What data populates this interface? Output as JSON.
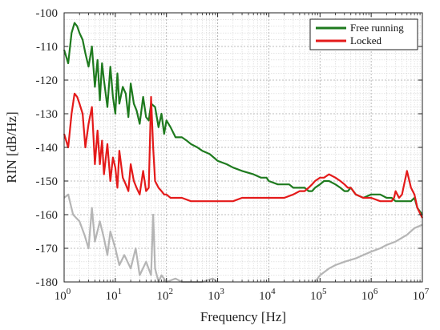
{
  "chart_data": {
    "type": "line",
    "xlabel": "Frequency [Hz]",
    "ylabel": "RIN [dB/Hz]",
    "xscale": "log",
    "xlim": [
      1,
      10000000
    ],
    "ylim": [
      -180,
      -100
    ],
    "grid": true,
    "minor_grid": true,
    "legend_position": "top-right",
    "x_ticks": [
      {
        "value": 1,
        "base": "10",
        "exp": "0"
      },
      {
        "value": 10,
        "base": "10",
        "exp": "1"
      },
      {
        "value": 100,
        "base": "10",
        "exp": "2"
      },
      {
        "value": 1000,
        "base": "10",
        "exp": "3"
      },
      {
        "value": 10000,
        "base": "10",
        "exp": "4"
      },
      {
        "value": 100000,
        "base": "10",
        "exp": "5"
      },
      {
        "value": 1000000,
        "base": "10",
        "exp": "6"
      },
      {
        "value": 10000000,
        "base": "10",
        "exp": "7"
      }
    ],
    "y_ticks": [
      -100,
      -110,
      -120,
      -130,
      -140,
      -150,
      -160,
      -170,
      -180
    ],
    "series": [
      {
        "name": "Free running",
        "color": "#1e7a1e",
        "in_legend": true,
        "x": [
          1,
          1.2,
          1.4,
          1.6,
          1.8,
          2,
          2.3,
          2.6,
          3,
          3.5,
          4,
          4.5,
          5,
          5.5,
          6,
          7,
          8,
          9,
          10,
          11,
          12,
          14,
          16,
          18,
          20,
          23,
          26,
          30,
          35,
          40,
          45,
          50,
          60,
          70,
          80,
          90,
          100,
          120,
          150,
          200,
          250,
          300,
          400,
          500,
          700,
          1000,
          1500,
          2000,
          3000,
          5000,
          7000,
          8000,
          9000,
          10000,
          15000,
          20000,
          25000,
          30000,
          35000,
          40000,
          50000,
          60000,
          70000,
          80000,
          100000,
          120000,
          150000,
          200000,
          250000,
          300000,
          350000,
          400000,
          500000,
          700000,
          1000000,
          1500000,
          2000000,
          2500000,
          3000000,
          3500000,
          4000000,
          5000000,
          6000000,
          7000000,
          8000000,
          10000000
        ],
        "y": [
          -111,
          -115,
          -106,
          -103,
          -104,
          -106,
          -108,
          -112,
          -116,
          -110,
          -122,
          -114,
          -126,
          -115,
          -120,
          -128,
          -116,
          -125,
          -130,
          -118,
          -127,
          -122,
          -124,
          -131,
          -121,
          -127,
          -129,
          -133,
          -125,
          -131,
          -132,
          -127,
          -128,
          -134,
          -130,
          -136,
          -132,
          -134,
          -137,
          -137,
          -138,
          -139,
          -140,
          -141,
          -142,
          -144,
          -145,
          -146,
          -147,
          -148,
          -149,
          -149,
          -149,
          -150,
          -151,
          -151,
          -151,
          -152,
          -152,
          -152,
          -152,
          -153,
          -153,
          -152,
          -151,
          -150,
          -150,
          -151,
          -152,
          -153,
          -153,
          -152,
          -154,
          -155,
          -154,
          -154,
          -155,
          -155,
          -156,
          -156,
          -156,
          -156,
          -156,
          -155,
          -158,
          -160
        ]
      },
      {
        "name": "Locked",
        "color": "#e41a1a",
        "in_legend": true,
        "x": [
          1,
          1.2,
          1.4,
          1.6,
          1.8,
          2,
          2.3,
          2.6,
          3,
          3.5,
          4,
          4.5,
          5,
          5.5,
          6,
          7,
          8,
          9,
          10,
          11,
          12,
          14,
          16,
          18,
          20,
          23,
          26,
          30,
          35,
          40,
          45,
          50,
          55,
          60,
          70,
          80,
          90,
          100,
          120,
          150,
          200,
          300,
          400,
          500,
          700,
          1000,
          2000,
          3000,
          5000,
          10000,
          20000,
          30000,
          40000,
          50000,
          60000,
          70000,
          80000,
          100000,
          120000,
          150000,
          200000,
          250000,
          300000,
          350000,
          400000,
          500000,
          700000,
          1000000,
          1500000,
          2000000,
          2500000,
          2800000,
          3000000,
          3500000,
          4000000,
          5000000,
          6000000,
          7000000,
          8000000,
          10000000
        ],
        "y": [
          -136,
          -140,
          -130,
          -124,
          -125,
          -127,
          -130,
          -140,
          -133,
          -128,
          -145,
          -135,
          -145,
          -138,
          -148,
          -139,
          -150,
          -143,
          -146,
          -152,
          -141,
          -149,
          -151,
          -153,
          -145,
          -150,
          -152,
          -154,
          -147,
          -153,
          -152,
          -125,
          -140,
          -150,
          -152,
          -153,
          -154,
          -154,
          -155,
          -155,
          -155,
          -156,
          -156,
          -156,
          -156,
          -156,
          -156,
          -155,
          -155,
          -155,
          -155,
          -154,
          -153,
          -153,
          -152,
          -151,
          -150,
          -149,
          -149,
          -148,
          -149,
          -150,
          -151,
          -152,
          -152,
          -154,
          -155,
          -155,
          -156,
          -156,
          -156,
          -155,
          -153,
          -155,
          -154,
          -147,
          -152,
          -154,
          -158,
          -161
        ]
      },
      {
        "name": "",
        "color": "#b5b5b5",
        "in_legend": false,
        "x": [
          1,
          1.2,
          1.5,
          2,
          2.5,
          3,
          3.5,
          4,
          5,
          6,
          7,
          8,
          10,
          12,
          15,
          20,
          25,
          30,
          40,
          50,
          55,
          60,
          70,
          80,
          100,
          150,
          200,
          300,
          500,
          800,
          1000
        ],
        "y": [
          -155,
          -154,
          -160,
          -162,
          -166,
          -170,
          -158,
          -168,
          -162,
          -167,
          -172,
          -165,
          -170,
          -175,
          -172,
          -176,
          -170,
          -178,
          -174,
          -178,
          -160,
          -176,
          -180,
          -178,
          -180,
          -179,
          -180,
          -180,
          -180,
          -179,
          -180
        ]
      },
      {
        "name": "",
        "color": "#b5b5b5",
        "in_legend": false,
        "x": [
          80000,
          100000,
          150000,
          200000,
          300000,
          500000,
          700000,
          1000000,
          1500000,
          2000000,
          3000000,
          5000000,
          7000000,
          10000000
        ],
        "y": [
          -180,
          -178,
          -176,
          -175,
          -174,
          -173,
          -172,
          -171,
          -170,
          -169,
          -168,
          -166,
          -164,
          -163
        ]
      }
    ]
  }
}
